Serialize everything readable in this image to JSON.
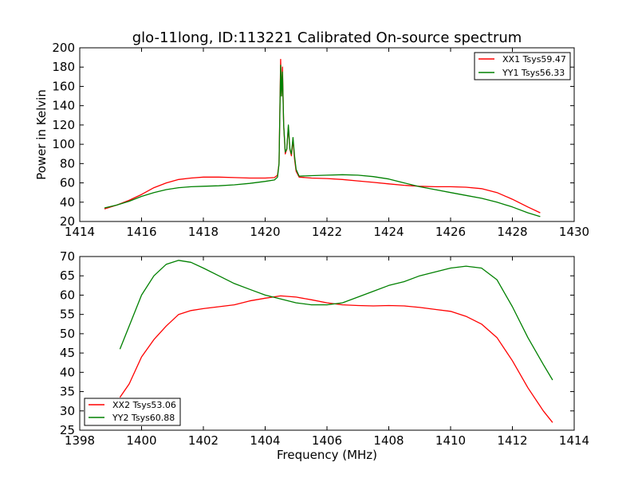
{
  "chart_data": [
    {
      "type": "line",
      "title": "glo-11long, ID:113221 Calibrated On-source spectrum",
      "xlabel": "",
      "ylabel": "Power in Kelvin",
      "xlim": [
        1414,
        1430
      ],
      "ylim": [
        20,
        200
      ],
      "xticks": [
        "1414",
        "1416",
        "1418",
        "1420",
        "1422",
        "1424",
        "1426",
        "1428",
        "1430"
      ],
      "yticks": [
        "20",
        "40",
        "60",
        "80",
        "100",
        "120",
        "140",
        "160",
        "180",
        "200"
      ],
      "grid": false,
      "legend_position": "top-right",
      "series": [
        {
          "name": "XX1 Tsys59.47",
          "color": "#ff0000",
          "points": [
            [
              1414.8,
              33
            ],
            [
              1415.2,
              37
            ],
            [
              1415.6,
              42
            ],
            [
              1416.0,
              48
            ],
            [
              1416.4,
              55
            ],
            [
              1416.8,
              60
            ],
            [
              1417.2,
              63.5
            ],
            [
              1417.6,
              65
            ],
            [
              1418.0,
              66
            ],
            [
              1418.5,
              66
            ],
            [
              1419.0,
              65.5
            ],
            [
              1419.5,
              65
            ],
            [
              1420.0,
              65
            ],
            [
              1420.3,
              65.5
            ],
            [
              1420.4,
              68
            ],
            [
              1420.45,
              80
            ],
            [
              1420.5,
              188
            ],
            [
              1420.53,
              150
            ],
            [
              1420.56,
              180
            ],
            [
              1420.6,
              120
            ],
            [
              1420.65,
              90
            ],
            [
              1420.7,
              95
            ],
            [
              1420.75,
              118
            ],
            [
              1420.8,
              95
            ],
            [
              1420.85,
              88
            ],
            [
              1420.9,
              105
            ],
            [
              1420.95,
              85
            ],
            [
              1421.0,
              72
            ],
            [
              1421.1,
              66
            ],
            [
              1421.5,
              65
            ],
            [
              1422.0,
              64.5
            ],
            [
              1422.5,
              63.5
            ],
            [
              1423.0,
              62
            ],
            [
              1423.5,
              60.5
            ],
            [
              1424.0,
              59
            ],
            [
              1424.5,
              57.5
            ],
            [
              1425.0,
              56.5
            ],
            [
              1425.5,
              56
            ],
            [
              1426.0,
              56
            ],
            [
              1426.5,
              55.5
            ],
            [
              1427.0,
              54
            ],
            [
              1427.5,
              50
            ],
            [
              1428.0,
              43
            ],
            [
              1428.5,
              35
            ],
            [
              1428.9,
              29
            ]
          ]
        },
        {
          "name": "YY1 Tsys56.33",
          "color": "#008000",
          "points": [
            [
              1414.8,
              34
            ],
            [
              1415.2,
              37
            ],
            [
              1415.6,
              41
            ],
            [
              1416.0,
              46
            ],
            [
              1416.4,
              50
            ],
            [
              1416.8,
              53
            ],
            [
              1417.2,
              55
            ],
            [
              1417.6,
              56
            ],
            [
              1418.0,
              56.5
            ],
            [
              1418.5,
              57
            ],
            [
              1419.0,
              58
            ],
            [
              1419.5,
              59.5
            ],
            [
              1420.0,
              61.5
            ],
            [
              1420.3,
              63
            ],
            [
              1420.4,
              66
            ],
            [
              1420.45,
              80
            ],
            [
              1420.5,
              182
            ],
            [
              1420.53,
              150
            ],
            [
              1420.56,
              175
            ],
            [
              1420.6,
              120
            ],
            [
              1420.65,
              92
            ],
            [
              1420.7,
              95
            ],
            [
              1420.75,
              120
            ],
            [
              1420.8,
              95
            ],
            [
              1420.85,
              90
            ],
            [
              1420.9,
              107
            ],
            [
              1420.95,
              88
            ],
            [
              1421.0,
              74
            ],
            [
              1421.1,
              67
            ],
            [
              1421.5,
              67.5
            ],
            [
              1422.0,
              68
            ],
            [
              1422.5,
              68.5
            ],
            [
              1423.0,
              68
            ],
            [
              1423.5,
              66.5
            ],
            [
              1424.0,
              64
            ],
            [
              1424.5,
              60
            ],
            [
              1425.0,
              56
            ],
            [
              1425.5,
              53
            ],
            [
              1426.0,
              50
            ],
            [
              1426.5,
              47
            ],
            [
              1427.0,
              44
            ],
            [
              1427.5,
              40
            ],
            [
              1428.0,
              35
            ],
            [
              1428.5,
              29
            ],
            [
              1428.9,
              25
            ]
          ]
        }
      ]
    },
    {
      "type": "line",
      "title": "",
      "xlabel": "Frequency (MHz)",
      "ylabel": "",
      "xlim": [
        1398,
        1414
      ],
      "ylim": [
        25,
        70
      ],
      "xticks": [
        "1398",
        "1400",
        "1402",
        "1404",
        "1406",
        "1408",
        "1410",
        "1412",
        "1414"
      ],
      "yticks": [
        "25",
        "30",
        "35",
        "40",
        "45",
        "50",
        "55",
        "60",
        "65",
        "70"
      ],
      "grid": false,
      "legend_position": "bottom-left",
      "series": [
        {
          "name": "XX2 Tsys53.06",
          "color": "#ff0000",
          "points": [
            [
              1399.3,
              33.5
            ],
            [
              1399.6,
              37
            ],
            [
              1400.0,
              44
            ],
            [
              1400.4,
              48.5
            ],
            [
              1400.8,
              52
            ],
            [
              1401.2,
              55
            ],
            [
              1401.6,
              56
            ],
            [
              1402.0,
              56.5
            ],
            [
              1402.5,
              57
            ],
            [
              1403.0,
              57.5
            ],
            [
              1403.5,
              58.5
            ],
            [
              1404.0,
              59.2
            ],
            [
              1404.5,
              59.8
            ],
            [
              1405.0,
              59.5
            ],
            [
              1405.5,
              58.8
            ],
            [
              1406.0,
              58
            ],
            [
              1406.5,
              57.5
            ],
            [
              1407.0,
              57.3
            ],
            [
              1407.5,
              57.2
            ],
            [
              1408.0,
              57.3
            ],
            [
              1408.5,
              57.2
            ],
            [
              1409.0,
              56.8
            ],
            [
              1409.5,
              56.3
            ],
            [
              1410.0,
              55.8
            ],
            [
              1410.5,
              54.5
            ],
            [
              1411.0,
              52.5
            ],
            [
              1411.5,
              49
            ],
            [
              1412.0,
              43
            ],
            [
              1412.5,
              36
            ],
            [
              1413.0,
              30
            ],
            [
              1413.3,
              27
            ]
          ]
        },
        {
          "name": "YY2 Tsys60.88",
          "color": "#008000",
          "points": [
            [
              1399.3,
              46
            ],
            [
              1399.6,
              52
            ],
            [
              1400.0,
              60
            ],
            [
              1400.4,
              65
            ],
            [
              1400.8,
              68
            ],
            [
              1401.2,
              69
            ],
            [
              1401.6,
              68.5
            ],
            [
              1402.0,
              67
            ],
            [
              1402.5,
              65
            ],
            [
              1403.0,
              63
            ],
            [
              1403.5,
              61.5
            ],
            [
              1404.0,
              60
            ],
            [
              1404.5,
              59
            ],
            [
              1405.0,
              58
            ],
            [
              1405.5,
              57.5
            ],
            [
              1406.0,
              57.5
            ],
            [
              1406.5,
              58
            ],
            [
              1407.0,
              59.5
            ],
            [
              1407.5,
              61
            ],
            [
              1408.0,
              62.5
            ],
            [
              1408.5,
              63.5
            ],
            [
              1409.0,
              65
            ],
            [
              1409.5,
              66
            ],
            [
              1410.0,
              67
            ],
            [
              1410.5,
              67.5
            ],
            [
              1411.0,
              67
            ],
            [
              1411.5,
              64
            ],
            [
              1412.0,
              57
            ],
            [
              1412.5,
              49
            ],
            [
              1413.0,
              42
            ],
            [
              1413.3,
              38
            ]
          ]
        }
      ]
    }
  ]
}
